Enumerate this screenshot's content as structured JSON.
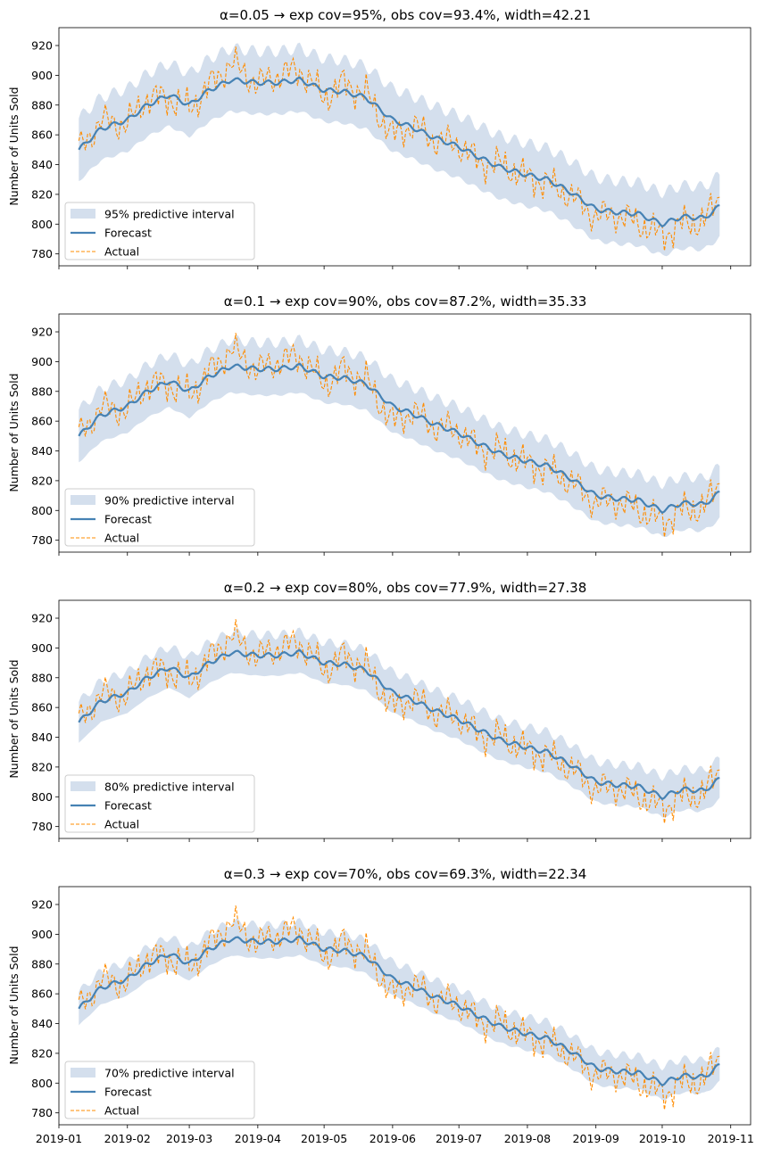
{
  "chart_data": [
    {
      "type": "line",
      "title": "α=0.05 → exp cov=95%, obs cov=93.4%, width=42.21",
      "xlabel": "",
      "ylabel": "Number of Units Sold",
      "ylim": [
        772,
        932
      ],
      "yticks": [
        780,
        800,
        820,
        840,
        860,
        880,
        900,
        920
      ],
      "xlim": [
        "2019-01-01",
        "2019-11-10"
      ],
      "xticks": [],
      "legend": [
        "95% predictive interval",
        "Forecast",
        "Actual"
      ],
      "legend_position": "lower-left",
      "interval_half_width": 21.1
    },
    {
      "type": "line",
      "title": "α=0.1 → exp cov=90%, obs cov=87.2%, width=35.33",
      "xlabel": "",
      "ylabel": "Number of Units Sold",
      "ylim": [
        772,
        932
      ],
      "yticks": [
        780,
        800,
        820,
        840,
        860,
        880,
        900,
        920
      ],
      "xlim": [
        "2019-01-01",
        "2019-11-10"
      ],
      "xticks": [],
      "legend": [
        "90% predictive interval",
        "Forecast",
        "Actual"
      ],
      "legend_position": "lower-left",
      "interval_half_width": 17.67
    },
    {
      "type": "line",
      "title": "α=0.2 → exp cov=80%, obs cov=77.9%, width=27.38",
      "xlabel": "",
      "ylabel": "Number of Units Sold",
      "ylim": [
        772,
        932
      ],
      "yticks": [
        780,
        800,
        820,
        840,
        860,
        880,
        900,
        920
      ],
      "xlim": [
        "2019-01-01",
        "2019-11-10"
      ],
      "xticks": [],
      "legend": [
        "80% predictive interval",
        "Forecast",
        "Actual"
      ],
      "legend_position": "lower-left",
      "interval_half_width": 13.69
    },
    {
      "type": "line",
      "title": "α=0.3 → exp cov=70%, obs cov=69.3%, width=22.34",
      "xlabel": "",
      "ylabel": "Number of Units Sold",
      "ylim": [
        772,
        932
      ],
      "yticks": [
        780,
        800,
        820,
        840,
        860,
        880,
        900,
        920
      ],
      "xlim": [
        "2019-01-01",
        "2019-11-10"
      ],
      "xticks": [
        "2019-01",
        "2019-02",
        "2019-03",
        "2019-04",
        "2019-05",
        "2019-06",
        "2019-07",
        "2019-08",
        "2019-09",
        "2019-10",
        "2019-11"
      ],
      "legend": [
        "70% predictive interval",
        "Forecast",
        "Actual"
      ],
      "legend_position": "lower-left",
      "interval_half_width": 11.17
    }
  ],
  "series_styles": {
    "interval_color": "#b0c4de",
    "forecast_color": "#4682b4",
    "actual_color": "#ff8c00"
  },
  "forecast_series": {
    "x": [
      "2019-01-10",
      "2019-01-20",
      "2019-02-01",
      "2019-02-10",
      "2019-02-20",
      "2019-03-01",
      "2019-03-10",
      "2019-03-20",
      "2019-04-01",
      "2019-04-10",
      "2019-04-20",
      "2019-05-01",
      "2019-05-10",
      "2019-05-20",
      "2019-06-01",
      "2019-06-10",
      "2019-06-20",
      "2019-07-01",
      "2019-07-10",
      "2019-07-20",
      "2019-08-01",
      "2019-08-10",
      "2019-08-20",
      "2019-09-01",
      "2019-09-10",
      "2019-09-20",
      "2019-10-01",
      "2019-10-10",
      "2019-10-20",
      "2019-10-27"
    ],
    "y": [
      850,
      864,
      870,
      880,
      887,
      880,
      890,
      897,
      895,
      895,
      897,
      890,
      889,
      885,
      870,
      865,
      858,
      852,
      845,
      838,
      833,
      830,
      822,
      810,
      808,
      807,
      800,
      805,
      804,
      812
    ]
  },
  "actual_series": {
    "x": [
      "2019-01-10",
      "2019-01-20",
      "2019-02-01",
      "2019-02-10",
      "2019-02-20",
      "2019-03-01",
      "2019-03-10",
      "2019-03-20",
      "2019-04-01",
      "2019-04-10",
      "2019-04-20",
      "2019-05-01",
      "2019-05-10",
      "2019-05-20",
      "2019-06-01",
      "2019-06-10",
      "2019-06-20",
      "2019-07-01",
      "2019-07-10",
      "2019-07-20",
      "2019-08-01",
      "2019-08-10",
      "2019-08-20",
      "2019-09-01",
      "2019-09-10",
      "2019-09-20",
      "2019-10-01",
      "2019-10-10",
      "2019-10-20",
      "2019-10-27"
    ],
    "y": [
      850,
      874,
      865,
      890,
      882,
      875,
      895,
      920,
      893,
      905,
      910,
      880,
      900,
      890,
      848,
      868,
      855,
      855,
      838,
      842,
      830,
      825,
      818,
      800,
      805,
      795,
      785,
      795,
      800,
      825
    ]
  }
}
